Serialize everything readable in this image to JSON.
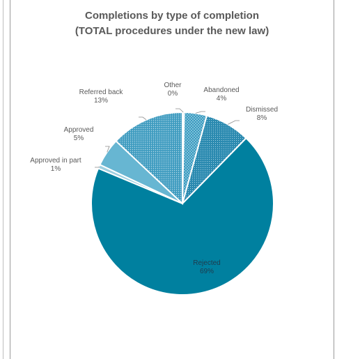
{
  "chart_data": {
    "type": "pie",
    "title_line1": "Completions by type of completion",
    "title_line2": "(TOTAL procedures under the new law)",
    "slices": [
      {
        "name": "Other",
        "value": 0.3,
        "label": "0%",
        "color": "#b7dbe8"
      },
      {
        "name": "Abandoned",
        "value": 4,
        "label": "4%",
        "color": "#4aa3c4"
      },
      {
        "name": "Dismissed",
        "value": 8,
        "label": "8%",
        "color": "#2e8fb4"
      },
      {
        "name": "Rejected",
        "value": 69,
        "label": "69%",
        "color": "#00809f"
      },
      {
        "name": "Approved in part",
        "value": 0.7,
        "label": "1%",
        "color": "#9fcfe0"
      },
      {
        "name": "Approved",
        "value": 5,
        "label": "5%",
        "color": "#67b6d2"
      },
      {
        "name": "Referred back",
        "value": 13,
        "label": "13%",
        "color": "#3f9cc0"
      }
    ]
  }
}
